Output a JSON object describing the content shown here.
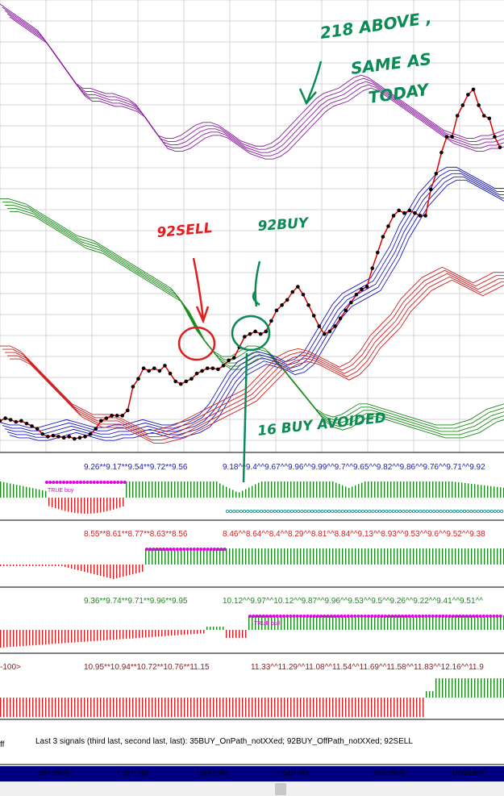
{
  "colors": {
    "purple": "#8a1a9e",
    "green": "#1a8a1a",
    "red": "#d42020",
    "blue": "#1a1abe",
    "magenta": "#e600e6",
    "cyan": "#1a9090",
    "price_line": "#e00000",
    "handwriting_green": "#0a8a55",
    "handwriting_red": "#e02020",
    "axis_bar": "#000080"
  },
  "annotations": {
    "note_line1": "218 ABOVE ,",
    "note_line2": "SAME AS",
    "note_line3": "TODAY",
    "sell_note": "92SELL",
    "buy_note": "92BUY",
    "avoided_note": "16 BUY AVOIDED"
  },
  "panels": [
    {
      "values": "9.26**9.17**9.54**9.72**9.56",
      "values2": "9.18^^9.4^^9.67^^9.96^^9.99^^9.7^^9.65^^9.82^^9.86^^9.76^^9.71^^9.92",
      "tag": "TRUE buy",
      "color": "#1a1abe"
    },
    {
      "values": "8.55**8.61**8.77**8.63**8.56",
      "values2": "8.46^^8.64^^8.4^^8.29^^8.81^^8.84^^9.13^^8.93^^9.53^^9.6^^9.52^^9.38",
      "tag": "",
      "color": "#d42020"
    },
    {
      "values": "9.36**9.74**9.71**9.96**9.95",
      "values2": "10.12^^9.97^^10.12^^9.87^^9.96^^9.53^^9.5^^9.26^^9.22^^9.41^^9.51^^",
      "tag": "TRUE bull",
      "color": "#1a8a1a"
    },
    {
      "values": "10.95**10.94**10.72**10.76**11.15",
      "values2": "11.33^^11.29^^11.08^^11.54^^11.69^^11.58^^11.83^^12.16^^11.9",
      "tag": "",
      "color": "#8b1a1a",
      "left_label": "-100>"
    }
  ],
  "signals_text": "Last 3 signals (third last, second last, last): 35BUY_OnPath_notXXed;  92BUY_OffPath_notXXed;  92SELL",
  "signals_left": "ff",
  "chart_data": {
    "type": "line",
    "title": "",
    "x_dates": [
      "4/01/1993",
      "1/02/1993",
      "1/03/1993",
      "1/04/1993",
      "3/05/1993",
      "1/06/1993"
    ],
    "price_series": {
      "name": "Price",
      "values": [
        9.3,
        9.35,
        9.32,
        9.28,
        9.3,
        9.25,
        9.2,
        9.15,
        9.05,
        9.0,
        9.02,
        9.0,
        8.98,
        9.0,
        8.96,
        8.98,
        9.0,
        9.05,
        9.15,
        9.3,
        9.35,
        9.4,
        9.4,
        9.4,
        9.5,
        9.95,
        10.1,
        10.3,
        10.25,
        10.3,
        10.25,
        10.35,
        10.2,
        10.05,
        10.0,
        10.05,
        10.1,
        10.2,
        10.25,
        10.3,
        10.3,
        10.28,
        10.35,
        10.45,
        10.5,
        10.7,
        10.9,
        10.95,
        11.0,
        10.95,
        11.0,
        11.2,
        11.4,
        11.5,
        11.6,
        11.75,
        11.85,
        11.7,
        11.5,
        11.3,
        11.1,
        10.95,
        11.0,
        11.1,
        11.25,
        11.4,
        11.55,
        11.7,
        11.8,
        11.85,
        12.2,
        12.5,
        12.8,
        13.0,
        13.2,
        13.3,
        13.25,
        13.3,
        13.25,
        13.2,
        13.2,
        13.7,
        14.0,
        14.4,
        14.7,
        14.7,
        15.1,
        15.3,
        15.5,
        15.6,
        15.3,
        15.1,
        15.05,
        14.7,
        14.5
      ]
    },
    "bands": [
      {
        "name": "purple band",
        "values": [
          17.1,
          17.0,
          16.9,
          16.8,
          16.7,
          16.6,
          16.4,
          16.2,
          16.0,
          15.8,
          15.6,
          15.5,
          15.5,
          15.45,
          15.4,
          15.4,
          15.35,
          15.3,
          15.2,
          15.0,
          14.8,
          14.6,
          14.55,
          14.55,
          14.6,
          14.7,
          14.8,
          14.85,
          14.85,
          14.8,
          14.7,
          14.6,
          14.5,
          14.45,
          14.4,
          14.4,
          14.45,
          14.55,
          14.7,
          14.85,
          15.0,
          15.15,
          15.3,
          15.4,
          15.45,
          15.5,
          15.6,
          15.7,
          15.75,
          15.7,
          15.6,
          15.5,
          15.4,
          15.3,
          15.2,
          15.1,
          15.0,
          14.9,
          14.8,
          14.7,
          14.65,
          14.6,
          14.55,
          14.55,
          14.6,
          14.6,
          14.65,
          14.7
        ]
      },
      {
        "name": "green band",
        "values": [
          13.4,
          13.4,
          13.35,
          13.3,
          13.2,
          13.1,
          13.0,
          12.9,
          12.8,
          12.7,
          12.65,
          12.6,
          12.5,
          12.4,
          12.3,
          12.2,
          12.1,
          12.0,
          11.9,
          11.8,
          11.7,
          11.5,
          11.2,
          10.9,
          10.7,
          10.5,
          10.4,
          10.4,
          10.5,
          10.6,
          10.6,
          10.55,
          10.4,
          10.2,
          10.0,
          9.8,
          9.6,
          9.4,
          9.3,
          9.25,
          9.3,
          9.4,
          9.5,
          9.5,
          9.45,
          9.4,
          9.35,
          9.3,
          9.25,
          9.2,
          9.15,
          9.1,
          9.1,
          9.1,
          9.15,
          9.2,
          9.3,
          9.4,
          9.45,
          9.5
        ]
      },
      {
        "name": "blue band",
        "values": [
          9.15,
          9.1,
          9.1,
          9.05,
          9.05,
          9.1,
          9.15,
          9.2,
          9.15,
          9.1,
          9.05,
          9.05,
          9.1,
          9.1,
          9.15,
          9.2,
          9.15,
          9.1,
          9.1,
          9.15,
          9.2,
          9.3,
          9.5,
          9.8,
          10.1,
          10.3,
          10.4,
          10.5,
          10.45,
          10.4,
          10.3,
          10.35,
          10.5,
          10.8,
          11.1,
          11.4,
          11.6,
          11.7,
          11.8,
          11.9,
          12.2,
          12.5,
          12.9,
          13.2,
          13.5,
          13.7,
          13.9,
          14.0,
          14.0,
          13.9,
          13.8,
          13.7,
          13.6,
          13.6
        ]
      },
      {
        "name": "red band",
        "values": [
          10.6,
          10.6,
          10.5,
          10.3,
          10.1,
          9.9,
          9.7,
          9.5,
          9.4,
          9.3,
          9.3,
          9.3,
          9.2,
          9.1,
          9.0,
          9.0,
          9.05,
          9.1,
          9.2,
          9.3,
          9.4,
          9.5,
          9.6,
          9.7,
          9.8,
          10.0,
          10.2,
          10.4,
          10.5,
          10.55,
          10.5,
          10.4,
          10.3,
          10.2,
          10.3,
          10.5,
          10.8,
          11.0,
          11.2,
          11.5,
          11.7,
          11.9,
          12.0,
          12.1,
          12.0,
          11.9,
          11.8,
          11.9,
          12.0,
          12.0
        ]
      }
    ],
    "legend": "none"
  }
}
